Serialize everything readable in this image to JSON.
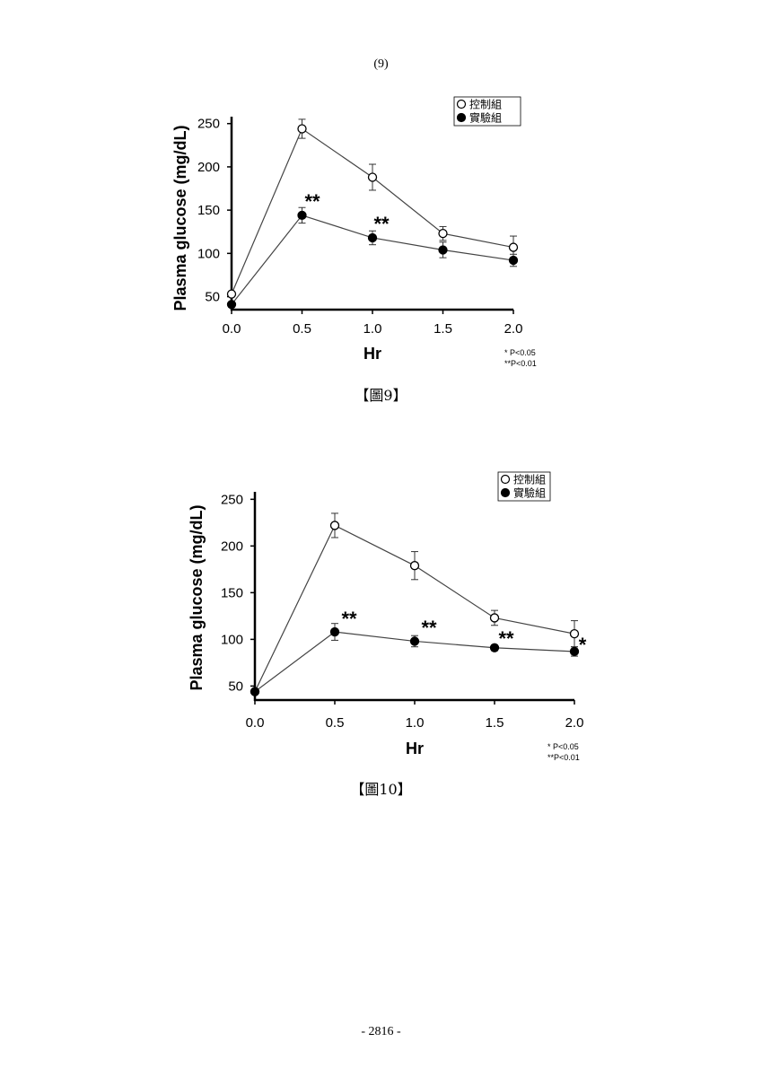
{
  "page": {
    "header": "(9)",
    "footer": "- 2816 -"
  },
  "chart_data": [
    {
      "type": "line",
      "caption": "【圖9】",
      "xlabel": "Hr",
      "ylabel": "Plasma glucose (mg/dL)",
      "x": [
        0.0,
        0.5,
        1.0,
        1.5,
        2.0
      ],
      "x_tick_labels": [
        "0.0",
        "0.5",
        "1.0",
        "1.5",
        "2.0"
      ],
      "y_ticks": [
        50,
        100,
        150,
        200,
        250
      ],
      "xlim": [
        0,
        2.0
      ],
      "ylim": [
        35,
        258
      ],
      "legend_position": "top-right",
      "series": [
        {
          "name": "控制組",
          "marker": "open-circle",
          "values": [
            53,
            244,
            188,
            123,
            107
          ],
          "errors": [
            0,
            11,
            15,
            8,
            13
          ]
        },
        {
          "name": "實驗組",
          "marker": "filled-circle",
          "values": [
            41,
            144,
            118,
            104,
            92
          ],
          "errors": [
            0,
            9,
            8,
            9,
            7
          ]
        }
      ],
      "annotations": [
        {
          "x": 0.5,
          "text": "**"
        },
        {
          "x": 1.0,
          "text": "**"
        }
      ],
      "significance_notes": [
        "*  P<0.05",
        "**P<0.01"
      ]
    },
    {
      "type": "line",
      "caption": "【圖10】",
      "xlabel": "Hr",
      "ylabel": "Plasma glucose (mg/dL)",
      "x": [
        0.0,
        0.5,
        1.0,
        1.5,
        2.0
      ],
      "x_tick_labels": [
        "0.0",
        "0.5",
        "1.0",
        "1.5",
        "2.0"
      ],
      "y_ticks": [
        50,
        100,
        150,
        200,
        250
      ],
      "xlim": [
        0,
        2.0
      ],
      "ylim": [
        35,
        258
      ],
      "legend_position": "top-right",
      "series": [
        {
          "name": "控制組",
          "marker": "open-circle",
          "values": [
            44,
            222,
            179,
            123,
            106
          ],
          "errors": [
            0,
            13,
            15,
            8,
            14
          ]
        },
        {
          "name": "實驗組",
          "marker": "filled-circle",
          "values": [
            44,
            108,
            98,
            91,
            87
          ],
          "errors": [
            0,
            9,
            6,
            3,
            5
          ]
        }
      ],
      "annotations": [
        {
          "x": 0.5,
          "text": "**"
        },
        {
          "x": 1.0,
          "text": "**"
        },
        {
          "x": 1.5,
          "text": "**"
        },
        {
          "x": 2.0,
          "text": "*"
        }
      ],
      "significance_notes": [
        "*  P<0.05",
        "**P<0.01"
      ]
    }
  ]
}
